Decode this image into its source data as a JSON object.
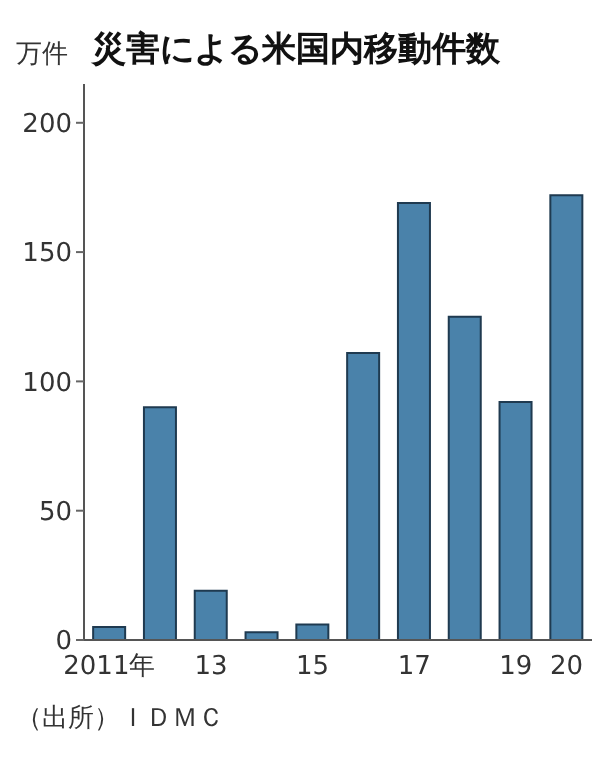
{
  "chart_data": {
    "type": "bar",
    "title": "災害による米国内移動件数",
    "ylabel": "万件",
    "categories": [
      "2011年",
      null,
      "13",
      null,
      "15",
      null,
      "17",
      null,
      "19",
      "20"
    ],
    "values": [
      5,
      90,
      19,
      3,
      6,
      111,
      169,
      125,
      92,
      172
    ],
    "color": "#4a82aa",
    "ylim": [
      0,
      215
    ],
    "yticks": [
      0,
      50,
      100,
      150,
      200
    ],
    "grid": false,
    "annotations": [
      "（出所）ＩＤＭＣ"
    ]
  }
}
